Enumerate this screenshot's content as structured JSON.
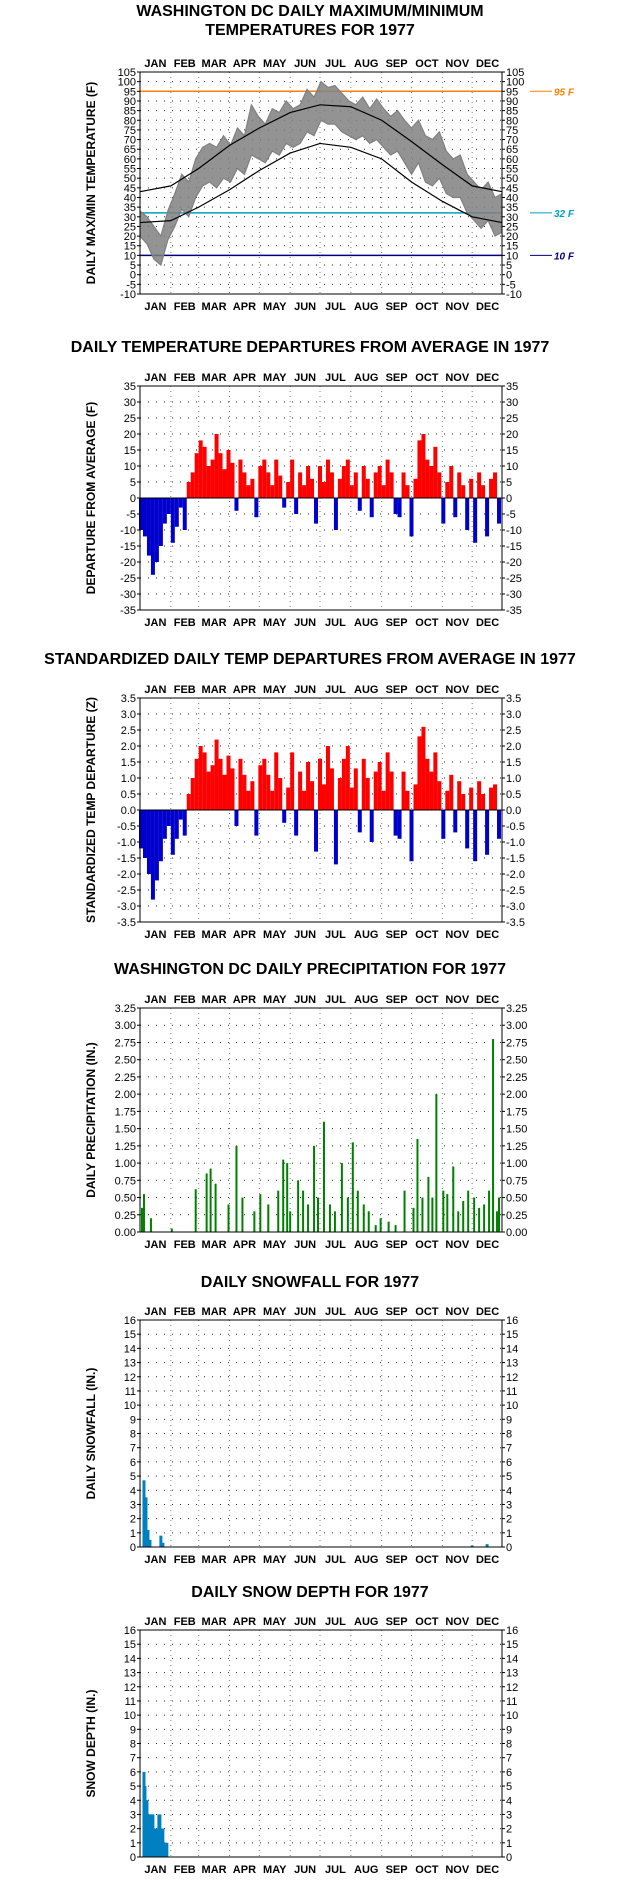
{
  "months": [
    "JAN",
    "FEB",
    "MAR",
    "APR",
    "MAY",
    "JUN",
    "JUL",
    "AUG",
    "SEP",
    "OCT",
    "NOV",
    "DEC"
  ],
  "colors": {
    "temp_series": "#808080",
    "normal_lines": "#000000",
    "positive_departure": "#ff0000",
    "negative_departure": "#0000cc",
    "precipitation": "#008000",
    "snow": "#0080c0",
    "ref_95": "#ff8000",
    "ref_32": "#00a0c0",
    "ref_10": "#000080"
  },
  "chart_data": [
    {
      "type": "line",
      "title": "WASHINGTON DC DAILY MAXIMUM/MINIMUM TEMPERATURES FOR 1977",
      "ylabel": "DAILY MAX/MIN TEMPERATURE (F)",
      "ylim": [
        -10,
        105
      ],
      "ytick_step": 5,
      "grid": true,
      "ref_lines": [
        {
          "value": 95,
          "label": "95 F"
        },
        {
          "value": 32,
          "label": "32 F"
        },
        {
          "value": 10,
          "label": "10 F"
        }
      ],
      "series": [
        {
          "role": "observed_max",
          "x_day": [
            1,
            8,
            15,
            22,
            29,
            36,
            43,
            50,
            57,
            64,
            71,
            78,
            85,
            92,
            99,
            106,
            113,
            120,
            127,
            134,
            141,
            148,
            155,
            162,
            169,
            176,
            183,
            190,
            197,
            204,
            211,
            218,
            225,
            232,
            239,
            246,
            253,
            260,
            267,
            274,
            281,
            288,
            295,
            302,
            309,
            316,
            323,
            330,
            337,
            344,
            351,
            358,
            365
          ],
          "values": [
            33,
            30,
            25,
            20,
            33,
            42,
            52,
            48,
            60,
            66,
            68,
            66,
            72,
            67,
            76,
            72,
            88,
            82,
            78,
            86,
            84,
            90,
            86,
            88,
            96,
            92,
            100,
            97,
            98,
            94,
            90,
            88,
            92,
            86,
            91,
            86,
            82,
            85,
            80,
            76,
            80,
            72,
            70,
            74,
            64,
            60,
            62,
            52,
            48,
            44,
            48,
            40,
            42
          ]
        },
        {
          "role": "observed_min",
          "x_day": [
            1,
            8,
            15,
            22,
            29,
            36,
            43,
            50,
            57,
            64,
            71,
            78,
            85,
            92,
            99,
            106,
            113,
            120,
            127,
            134,
            141,
            148,
            155,
            162,
            169,
            176,
            183,
            190,
            197,
            204,
            211,
            218,
            225,
            232,
            239,
            246,
            253,
            260,
            267,
            274,
            281,
            288,
            295,
            302,
            309,
            316,
            323,
            330,
            337,
            344,
            351,
            358,
            365
          ],
          "values": [
            20,
            16,
            8,
            5,
            18,
            25,
            34,
            30,
            40,
            46,
            48,
            45,
            50,
            48,
            55,
            52,
            62,
            60,
            58,
            64,
            62,
            68,
            66,
            68,
            74,
            72,
            80,
            78,
            78,
            74,
            72,
            70,
            72,
            68,
            70,
            66,
            62,
            64,
            58,
            52,
            58,
            48,
            46,
            50,
            42,
            40,
            40,
            32,
            28,
            24,
            28,
            20,
            22
          ]
        },
        {
          "role": "normal_max",
          "x_day": [
            1,
            32,
            60,
            91,
            121,
            152,
            182,
            213,
            244,
            274,
            305,
            335,
            365
          ],
          "values": [
            43,
            46,
            55,
            67,
            76,
            84,
            88,
            87,
            80,
            69,
            57,
            46,
            43
          ]
        },
        {
          "role": "normal_min",
          "x_day": [
            1,
            32,
            60,
            91,
            121,
            152,
            182,
            213,
            244,
            274,
            305,
            335,
            365
          ],
          "values": [
            27,
            28,
            35,
            44,
            54,
            63,
            68,
            66,
            60,
            48,
            38,
            30,
            27
          ]
        }
      ]
    },
    {
      "type": "bar",
      "title": "DAILY TEMPERATURE DEPARTURES FROM AVERAGE IN 1977",
      "ylabel": "DEPARTURE FROM AVERAGE (F)",
      "ylim": [
        -35,
        35
      ],
      "ytick_step": 5,
      "grid": true,
      "x_day": [
        2,
        6,
        10,
        14,
        18,
        22,
        26,
        30,
        34,
        38,
        42,
        46,
        50,
        54,
        58,
        62,
        66,
        70,
        74,
        78,
        82,
        86,
        90,
        94,
        98,
        102,
        106,
        110,
        114,
        118,
        122,
        126,
        130,
        134,
        138,
        142,
        146,
        150,
        154,
        158,
        162,
        166,
        170,
        174,
        178,
        182,
        186,
        190,
        194,
        198,
        202,
        206,
        210,
        214,
        218,
        222,
        226,
        230,
        234,
        238,
        242,
        246,
        250,
        254,
        258,
        262,
        266,
        270,
        274,
        278,
        282,
        286,
        290,
        294,
        298,
        302,
        306,
        310,
        314,
        318,
        322,
        326,
        330,
        334,
        338,
        342,
        346,
        350,
        354,
        358,
        362
      ],
      "values": [
        -10,
        -12,
        -18,
        -24,
        -20,
        -15,
        -8,
        -5,
        -14,
        -9,
        -3,
        -10,
        5,
        8,
        14,
        18,
        16,
        10,
        12,
        20,
        14,
        9,
        15,
        11,
        -4,
        12,
        8,
        4,
        6,
        -6,
        10,
        12,
        8,
        4,
        12,
        7,
        -3,
        5,
        12,
        -5,
        8,
        4,
        10,
        6,
        -8,
        10,
        5,
        12,
        8,
        -10,
        6,
        10,
        12,
        4,
        8,
        -4,
        10,
        6,
        -6,
        8,
        10,
        4,
        12,
        8,
        -5,
        -6,
        8,
        4,
        -12,
        6,
        18,
        20,
        12,
        10,
        16,
        8,
        -8,
        5,
        10,
        -6,
        8,
        4,
        -10,
        6,
        -14,
        8,
        4,
        -12,
        6,
        8,
        -8
      ]
    },
    {
      "type": "bar",
      "title": "STANDARDIZED DAILY TEMP DEPARTURES FROM AVERAGE IN 1977",
      "ylabel": "STANDARDIZED TEMP DEPARTURE (Z)",
      "ylim": [
        -3.5,
        3.5
      ],
      "ytick_step": 0.5,
      "grid": true,
      "x_day": [
        2,
        6,
        10,
        14,
        18,
        22,
        26,
        30,
        34,
        38,
        42,
        46,
        50,
        54,
        58,
        62,
        66,
        70,
        74,
        78,
        82,
        86,
        90,
        94,
        98,
        102,
        106,
        110,
        114,
        118,
        122,
        126,
        130,
        134,
        138,
        142,
        146,
        150,
        154,
        158,
        162,
        166,
        170,
        174,
        178,
        182,
        186,
        190,
        194,
        198,
        202,
        206,
        210,
        214,
        218,
        222,
        226,
        230,
        234,
        238,
        242,
        246,
        250,
        254,
        258,
        262,
        266,
        270,
        274,
        278,
        282,
        286,
        290,
        294,
        298,
        302,
        306,
        310,
        314,
        318,
        322,
        326,
        330,
        334,
        338,
        342,
        346,
        350,
        354,
        358,
        362
      ],
      "values": [
        -1.2,
        -1.5,
        -2.0,
        -2.8,
        -2.2,
        -1.6,
        -0.9,
        -0.5,
        -1.4,
        -0.9,
        -0.3,
        -0.8,
        0.5,
        1.0,
        1.6,
        2.0,
        1.8,
        1.2,
        1.4,
        2.2,
        1.6,
        1.1,
        1.7,
        1.3,
        -0.5,
        1.6,
        1.1,
        0.6,
        0.9,
        -0.8,
        1.4,
        1.6,
        1.1,
        0.6,
        1.8,
        1.0,
        -0.4,
        0.7,
        1.8,
        -0.8,
        1.2,
        0.6,
        1.5,
        0.9,
        -1.3,
        1.6,
        0.8,
        2.0,
        1.3,
        -1.7,
        1.0,
        1.6,
        2.0,
        0.7,
        1.3,
        -0.7,
        1.6,
        1.0,
        -1.0,
        1.2,
        1.5,
        0.6,
        1.8,
        1.2,
        -0.8,
        -0.9,
        1.2,
        0.6,
        -1.6,
        0.8,
        2.3,
        2.6,
        1.6,
        1.2,
        1.8,
        0.9,
        -0.9,
        0.6,
        1.1,
        -0.7,
        0.9,
        0.5,
        -1.2,
        0.7,
        -1.6,
        0.9,
        0.5,
        -1.4,
        0.7,
        0.8,
        -0.9
      ]
    },
    {
      "type": "bar",
      "title": "WASHINGTON DC DAILY PRECIPITATION FOR 1977",
      "ylabel": "DAILY PRECIPITATION (IN.)",
      "ylim": [
        0,
        3.25
      ],
      "ytick_step": 0.25,
      "grid": true,
      "x_day": [
        3,
        5,
        12,
        33,
        57,
        68,
        72,
        77,
        90,
        98,
        104,
        116,
        122,
        130,
        140,
        145,
        149,
        152,
        160,
        165,
        170,
        176,
        180,
        186,
        192,
        197,
        204,
        210,
        215,
        220,
        226,
        231,
        238,
        243,
        251,
        258,
        267,
        276,
        280,
        285,
        291,
        295,
        299,
        306,
        310,
        316,
        321,
        326,
        331,
        337,
        342,
        347,
        352,
        356,
        360,
        362
      ],
      "values": [
        0.35,
        0.55,
        0.2,
        0.05,
        0.62,
        0.85,
        0.92,
        0.7,
        0.4,
        1.25,
        0.5,
        0.3,
        0.55,
        0.4,
        0.6,
        1.05,
        1.0,
        0.3,
        0.75,
        0.6,
        0.4,
        1.25,
        0.5,
        1.6,
        0.4,
        0.3,
        1.0,
        0.5,
        1.3,
        0.6,
        0.4,
        0.3,
        0.1,
        0.2,
        0.15,
        0.1,
        0.6,
        0.35,
        1.35,
        0.5,
        0.8,
        0.5,
        2.0,
        0.6,
        0.55,
        0.95,
        0.3,
        0.45,
        0.6,
        0.5,
        0.35,
        0.4,
        0.6,
        2.8,
        0.3,
        0.5
      ]
    },
    {
      "type": "bar",
      "title": "DAILY SNOWFALL FOR 1977",
      "ylabel": "DAILY SNOWFALL (IN.)",
      "ylim": [
        0,
        16
      ],
      "ytick_step": 1,
      "grid": true,
      "x_day": [
        5,
        7,
        9,
        11,
        22,
        24,
        335,
        350
      ],
      "values": [
        4.7,
        3.5,
        1.2,
        0.5,
        0.8,
        0.3,
        0.1,
        0.2
      ]
    },
    {
      "type": "bar",
      "title": "DAILY SNOW DEPTH FOR 1977",
      "ylabel": "SNOW DEPTH (IN.)",
      "ylim": [
        0,
        16
      ],
      "ytick_step": 1,
      "grid": true,
      "x_day": [
        5,
        6,
        7,
        8,
        9,
        10,
        11,
        12,
        13,
        14,
        15,
        16,
        17,
        18,
        19,
        20,
        21,
        22,
        23,
        24,
        25,
        26,
        27,
        28
      ],
      "values": [
        6,
        5,
        4,
        4,
        3,
        3,
        3,
        3,
        3,
        3,
        2,
        2,
        2,
        2,
        2,
        3,
        3,
        2,
        2,
        2,
        1,
        1,
        1,
        1
      ]
    }
  ]
}
